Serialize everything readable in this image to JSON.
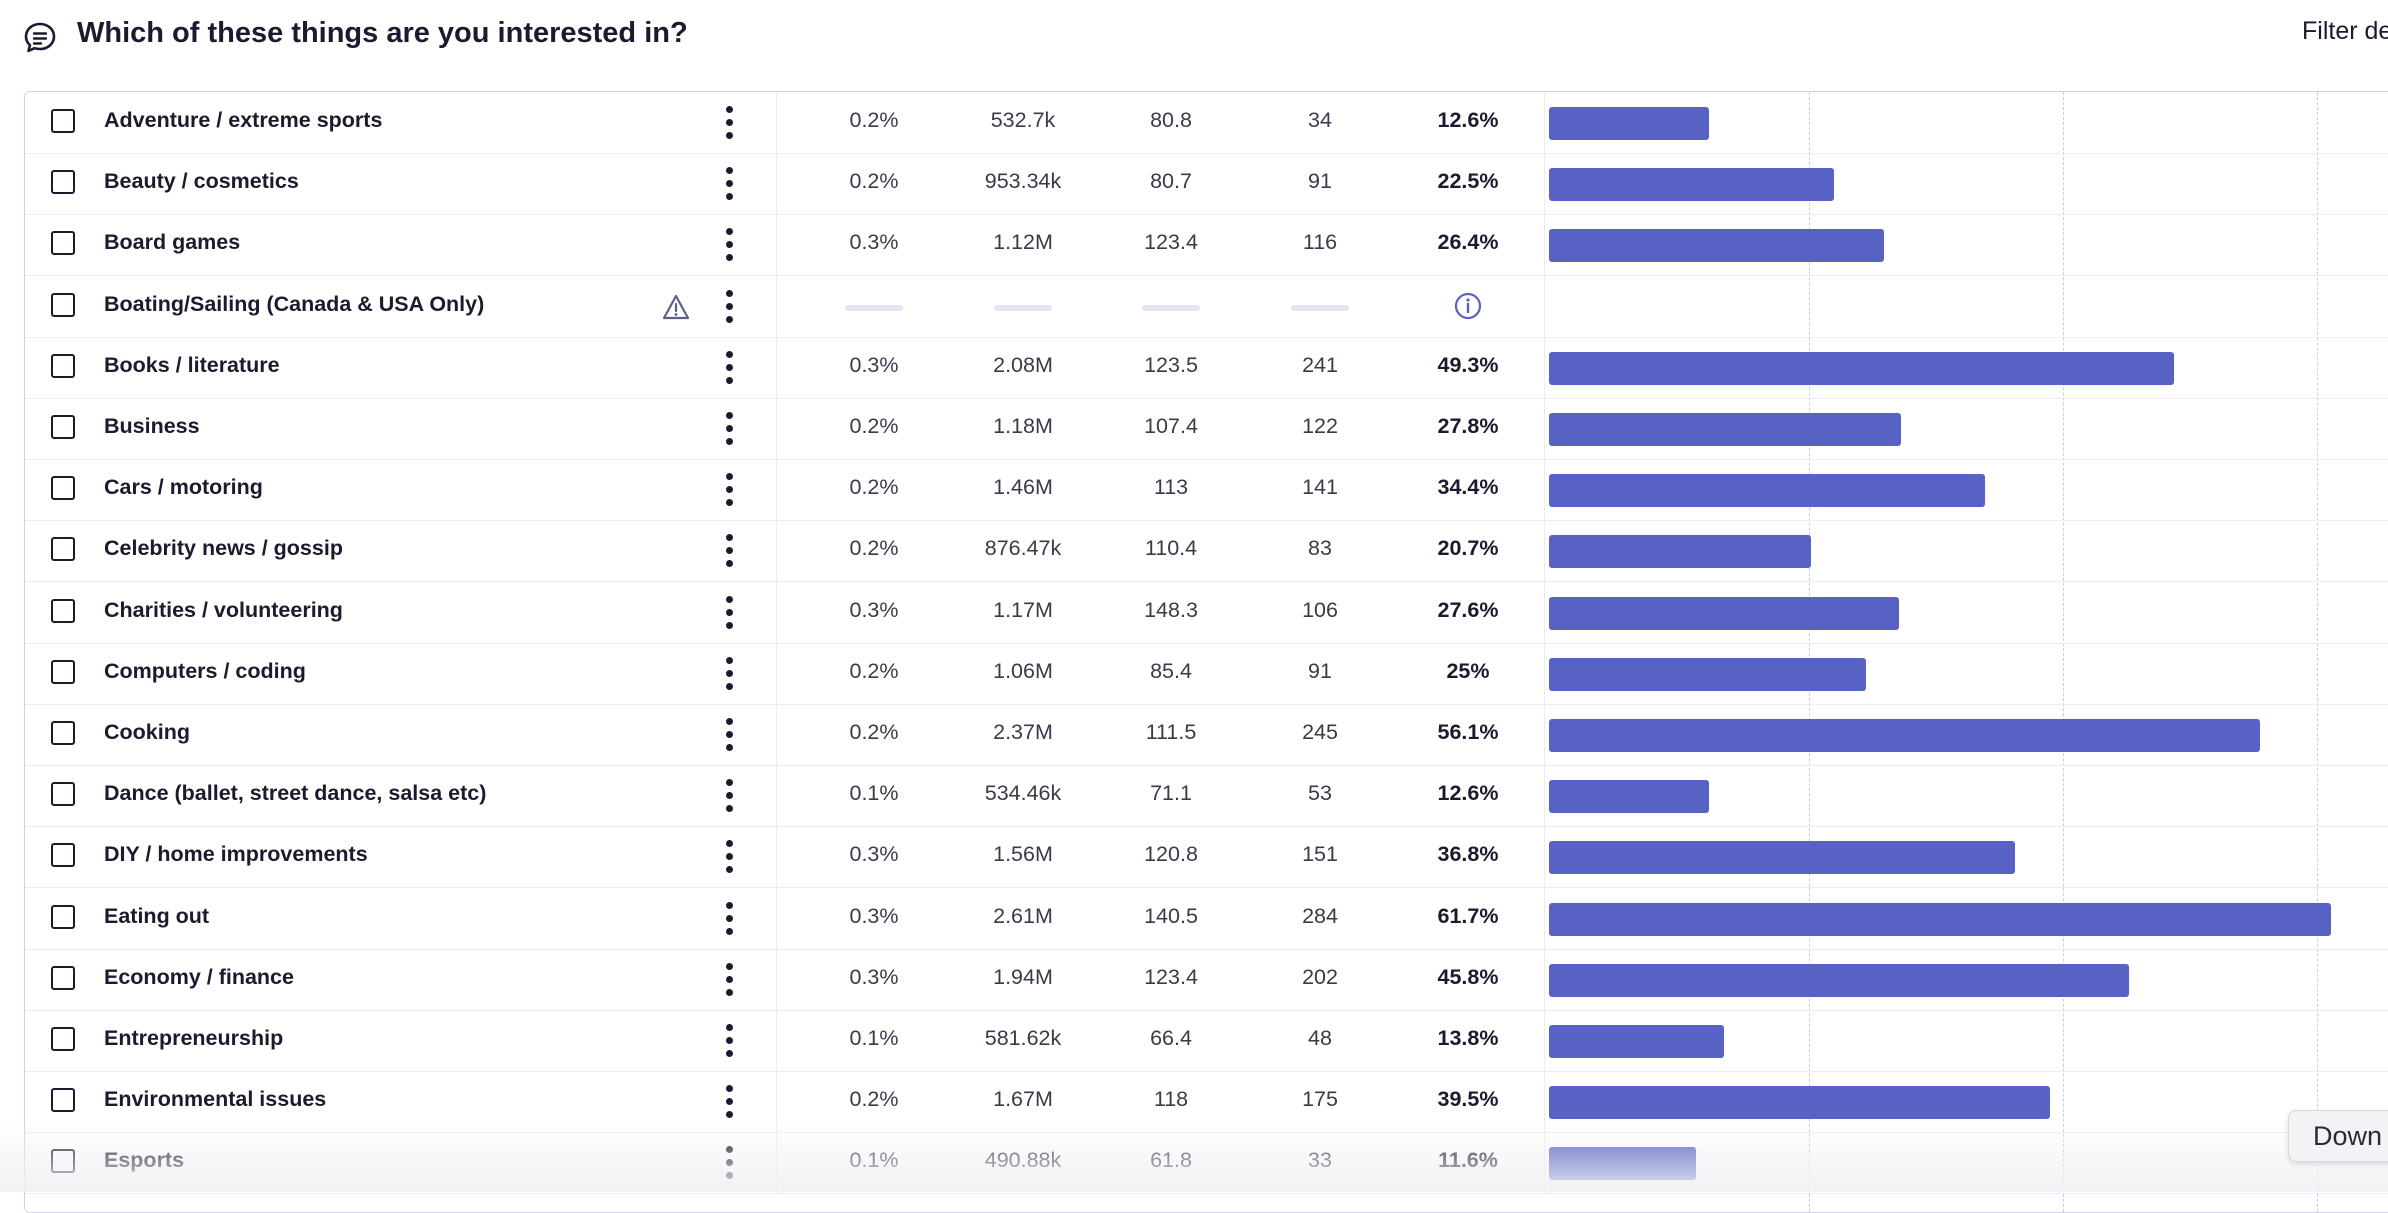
{
  "header": {
    "question_icon": "chat-bubble-icon",
    "title": "Which of these things are you interested in?",
    "filter_label": "Filter de"
  },
  "colors": {
    "bar": "#5861c4",
    "text": "#1b1b2f",
    "grid": "#c8cce6"
  },
  "chart_scale_max_percent": 60,
  "rows": [
    {
      "label": "Adventure / extreme sports",
      "c1": "0.2%",
      "c2": "532.7k",
      "c3": "80.8",
      "c4": "34",
      "pct": "12.6%",
      "value": 12.6,
      "warn": false,
      "missing": false
    },
    {
      "label": "Beauty / cosmetics",
      "c1": "0.2%",
      "c2": "953.34k",
      "c3": "80.7",
      "c4": "91",
      "pct": "22.5%",
      "value": 22.5,
      "warn": false,
      "missing": false
    },
    {
      "label": "Board games",
      "c1": "0.3%",
      "c2": "1.12M",
      "c3": "123.4",
      "c4": "116",
      "pct": "26.4%",
      "value": 26.4,
      "warn": false,
      "missing": false
    },
    {
      "label": "Boating/Sailing (Canada & USA Only)",
      "c1": "",
      "c2": "",
      "c3": "",
      "c4": "",
      "pct": "",
      "value": 0,
      "warn": true,
      "missing": true
    },
    {
      "label": "Books / literature",
      "c1": "0.3%",
      "c2": "2.08M",
      "c3": "123.5",
      "c4": "241",
      "pct": "49.3%",
      "value": 49.3,
      "warn": false,
      "missing": false
    },
    {
      "label": "Business",
      "c1": "0.2%",
      "c2": "1.18M",
      "c3": "107.4",
      "c4": "122",
      "pct": "27.8%",
      "value": 27.8,
      "warn": false,
      "missing": false
    },
    {
      "label": "Cars / motoring",
      "c1": "0.2%",
      "c2": "1.46M",
      "c3": "113",
      "c4": "141",
      "pct": "34.4%",
      "value": 34.4,
      "warn": false,
      "missing": false
    },
    {
      "label": "Celebrity news / gossip",
      "c1": "0.2%",
      "c2": "876.47k",
      "c3": "110.4",
      "c4": "83",
      "pct": "20.7%",
      "value": 20.7,
      "warn": false,
      "missing": false
    },
    {
      "label": "Charities / volunteering",
      "c1": "0.3%",
      "c2": "1.17M",
      "c3": "148.3",
      "c4": "106",
      "pct": "27.6%",
      "value": 27.6,
      "warn": false,
      "missing": false
    },
    {
      "label": "Computers / coding",
      "c1": "0.2%",
      "c2": "1.06M",
      "c3": "85.4",
      "c4": "91",
      "pct": "25%",
      "value": 25,
      "warn": false,
      "missing": false
    },
    {
      "label": "Cooking",
      "c1": "0.2%",
      "c2": "2.37M",
      "c3": "111.5",
      "c4": "245",
      "pct": "56.1%",
      "value": 56.1,
      "warn": false,
      "missing": false
    },
    {
      "label": "Dance (ballet, street dance, salsa etc)",
      "c1": "0.1%",
      "c2": "534.46k",
      "c3": "71.1",
      "c4": "53",
      "pct": "12.6%",
      "value": 12.6,
      "warn": false,
      "missing": false
    },
    {
      "label": "DIY / home improvements",
      "c1": "0.3%",
      "c2": "1.56M",
      "c3": "120.8",
      "c4": "151",
      "pct": "36.8%",
      "value": 36.8,
      "warn": false,
      "missing": false
    },
    {
      "label": "Eating out",
      "c1": "0.3%",
      "c2": "2.61M",
      "c3": "140.5",
      "c4": "284",
      "pct": "61.7%",
      "value": 61.7,
      "warn": false,
      "missing": false
    },
    {
      "label": "Economy / finance",
      "c1": "0.3%",
      "c2": "1.94M",
      "c3": "123.4",
      "c4": "202",
      "pct": "45.8%",
      "value": 45.8,
      "warn": false,
      "missing": false
    },
    {
      "label": "Entrepreneurship",
      "c1": "0.1%",
      "c2": "581.62k",
      "c3": "66.4",
      "c4": "48",
      "pct": "13.8%",
      "value": 13.8,
      "warn": false,
      "missing": false
    },
    {
      "label": "Environmental issues",
      "c1": "0.2%",
      "c2": "1.67M",
      "c3": "118",
      "c4": "175",
      "pct": "39.5%",
      "value": 39.5,
      "warn": false,
      "missing": false
    },
    {
      "label": "Esports",
      "c1": "0.1%",
      "c2": "490.88k",
      "c3": "61.8",
      "c4": "33",
      "pct": "11.6%",
      "value": 11.6,
      "warn": false,
      "missing": false
    }
  ],
  "download": {
    "label": "Down"
  }
}
